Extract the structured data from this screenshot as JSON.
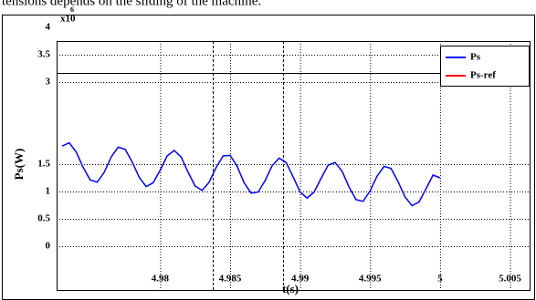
{
  "caption": "tensions depends on the sliding of the machine.",
  "chart_data": {
    "type": "line",
    "xlabel": "t(s)",
    "ylabel": "Ps(W)",
    "y_multiplier": {
      "base": "x10",
      "exponent": "6"
    },
    "x": [
      4.973,
      4.9735,
      4.974,
      4.9745,
      4.975,
      4.9755,
      4.976,
      4.9765,
      4.977,
      4.9775,
      4.978,
      4.9785,
      4.979,
      4.9795,
      4.98,
      4.9805,
      4.981,
      4.9815,
      4.982,
      4.9825,
      4.983,
      4.9835,
      4.984,
      4.9845,
      4.985,
      4.9855,
      4.986,
      4.9865,
      4.987,
      4.9875,
      4.988,
      4.9885,
      4.989,
      4.9895,
      4.99,
      4.9905,
      4.991,
      4.9915,
      4.992,
      4.9925,
      4.993,
      4.9935,
      4.994,
      4.9945,
      4.995,
      4.9955,
      4.996,
      4.9965,
      4.997,
      4.9975,
      4.998,
      4.9985,
      4.999,
      4.9995,
      5.0
    ],
    "series": [
      {
        "name": "Ps",
        "color": "#0000ff",
        "values": [
          1.83,
          1.89,
          1.72,
          1.44,
          1.21,
          1.17,
          1.35,
          1.63,
          1.81,
          1.77,
          1.54,
          1.26,
          1.09,
          1.16,
          1.39,
          1.65,
          1.75,
          1.63,
          1.35,
          1.1,
          1.02,
          1.17,
          1.44,
          1.65,
          1.66,
          1.46,
          1.16,
          0.97,
          0.99,
          1.2,
          1.47,
          1.61,
          1.53,
          1.27,
          0.99,
          0.88,
          0.99,
          1.24,
          1.48,
          1.53,
          1.37,
          1.08,
          0.85,
          0.82,
          1.01,
          1.28,
          1.46,
          1.42,
          1.18,
          0.9,
          0.74,
          0.81,
          1.05,
          1.3,
          1.25
        ]
      },
      {
        "name": "Ps-ref",
        "color": "#ff0000"
      }
    ],
    "xlim": [
      4.9726,
      5.0064
    ],
    "xticks": [
      4.98,
      4.985,
      4.99,
      4.995,
      5,
      5.005
    ],
    "ylim": [
      -0.8,
      3.75
    ],
    "yticks": [
      0,
      0.5,
      1,
      1.5,
      3,
      3.5,
      4
    ],
    "grid": true,
    "legend": "top-right"
  }
}
